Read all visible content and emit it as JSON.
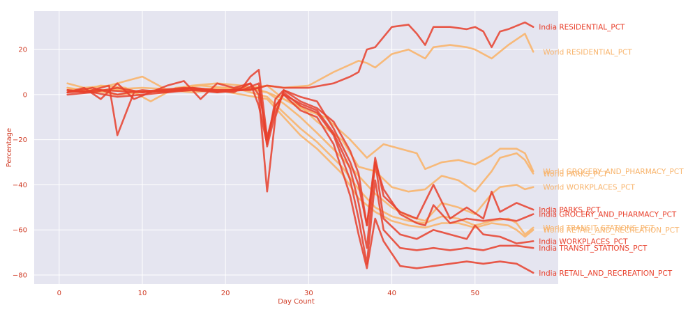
{
  "chart_data": {
    "type": "line",
    "xlabel": "Day Count",
    "ylabel": "Percentage",
    "xlim": [
      -3,
      60
    ],
    "ylim": [
      -84,
      37
    ],
    "x_ticks": [
      0,
      10,
      20,
      30,
      40,
      50
    ],
    "y_ticks": [
      20,
      0,
      -20,
      -40,
      -60,
      -80
    ],
    "x_tick_labels": [
      "0",
      "10",
      "20",
      "30",
      "40",
      "50"
    ],
    "y_tick_labels": [
      "20",
      "0",
      "−20",
      "−40",
      "−60",
      "−80"
    ],
    "grid": true,
    "legend": "labels at line ends (right)",
    "colors": {
      "plot_background": "#e5e5f0",
      "grid": "#ffffff",
      "axis_text": "#d03b25",
      "india": "#e8402c",
      "world": "#f8b46c"
    },
    "series": [
      {
        "name": "World RESIDENTIAL_PCT",
        "group": "world",
        "x": [
          1,
          5,
          10,
          15,
          20,
          23,
          25,
          27,
          30,
          33,
          36,
          37,
          38,
          40,
          42,
          44,
          45,
          47,
          49,
          50,
          52,
          54,
          56,
          57
        ],
        "y": [
          2,
          2,
          3,
          2,
          3,
          3,
          4,
          3,
          4,
          10,
          15,
          14,
          12,
          18,
          20,
          16,
          21,
          22,
          21,
          20,
          16,
          22,
          27,
          19
        ]
      },
      {
        "name": "World GROCERY_AND_PHARMACY_PCT",
        "group": "world",
        "x": [
          1,
          3,
          5,
          8,
          11,
          14,
          17,
          20,
          23,
          25,
          27,
          29,
          32,
          35,
          37,
          39,
          41,
          43,
          44,
          46,
          48,
          50,
          52,
          53,
          55,
          56,
          57
        ],
        "y": [
          3,
          2,
          4,
          3,
          -3,
          3,
          4,
          3,
          2,
          4,
          -2,
          -6,
          -10,
          -20,
          -28,
          -22,
          -24,
          -26,
          -33,
          -30,
          -29,
          -31,
          -27,
          -24,
          -24,
          -26,
          -34
        ]
      },
      {
        "name": "World PARKS_PCT",
        "group": "world",
        "x": [
          1,
          3,
          6,
          10,
          13,
          16,
          19,
          22,
          25,
          27,
          29,
          31,
          34,
          36,
          38,
          40,
          42,
          44,
          46,
          48,
          50,
          52,
          53,
          55,
          56,
          57
        ],
        "y": [
          5,
          3,
          4,
          8,
          2,
          4,
          5,
          4,
          1,
          -2,
          -5,
          -12,
          -20,
          -32,
          -34,
          -41,
          -43,
          -42,
          -36,
          -38,
          -43,
          -34,
          -28,
          -26,
          -29,
          -35
        ]
      },
      {
        "name": "World WORKPLACES_PCT",
        "group": "world",
        "x": [
          1,
          4,
          7,
          10,
          13,
          16,
          19,
          22,
          25,
          27,
          29,
          31,
          34,
          36,
          38,
          40,
          42,
          44,
          46,
          48,
          50,
          52,
          53,
          55,
          56,
          57
        ],
        "y": [
          2,
          1,
          3,
          1,
          2,
          3,
          2,
          3,
          1,
          -4,
          -10,
          -17,
          -28,
          -36,
          -44,
          -50,
          -54,
          -56,
          -48,
          -50,
          -53,
          -44,
          -41,
          -40,
          -42,
          -41
        ]
      },
      {
        "name": "World TRANSIT_STATIONS_PCT",
        "group": "world",
        "x": [
          1,
          4,
          7,
          10,
          13,
          16,
          19,
          22,
          25,
          27,
          29,
          31,
          34,
          36,
          38,
          40,
          42,
          44,
          46,
          48,
          50,
          52,
          54,
          55,
          56,
          57
        ],
        "y": [
          3,
          1,
          2,
          1,
          2,
          3,
          1,
          2,
          -1,
          -8,
          -15,
          -21,
          -32,
          -42,
          -50,
          -54,
          -56,
          -57,
          -54,
          -55,
          -58,
          -56,
          -55,
          -57,
          -62,
          -59
        ]
      },
      {
        "name": "World RETAIL_AND_RECREATION_PCT",
        "group": "world",
        "x": [
          1,
          4,
          7,
          10,
          13,
          16,
          19,
          22,
          25,
          27,
          29,
          31,
          34,
          36,
          38,
          40,
          42,
          44,
          46,
          48,
          50,
          52,
          54,
          55,
          56,
          57
        ],
        "y": [
          1,
          2,
          0,
          1,
          2,
          1,
          2,
          0,
          -2,
          -10,
          -18,
          -24,
          -35,
          -46,
          -52,
          -56,
          -58,
          -59,
          -57,
          -57,
          -59,
          -57,
          -58,
          -60,
          -63,
          -60
        ]
      },
      {
        "name": "India RESIDENTIAL_PCT",
        "group": "india",
        "x": [
          1,
          5,
          10,
          15,
          20,
          23,
          25,
          27,
          30,
          33,
          35,
          36,
          37,
          38,
          40,
          42,
          43,
          44,
          45,
          47,
          49,
          50,
          51,
          52,
          53,
          54,
          56,
          57
        ],
        "y": [
          1,
          2,
          1,
          2,
          2,
          2,
          4,
          3,
          3,
          5,
          8,
          10,
          20,
          21,
          30,
          31,
          27,
          22,
          30,
          30,
          29,
          30,
          28,
          21,
          28,
          29,
          32,
          30
        ]
      },
      {
        "name": "India PARKS_PCT",
        "group": "india",
        "x": [
          1,
          3,
          5,
          7,
          9,
          11,
          13,
          15,
          17,
          19,
          21,
          23,
          24,
          25,
          26,
          27,
          29,
          31,
          33,
          35,
          36,
          37,
          38,
          39,
          41,
          43,
          45,
          47,
          49,
          51,
          52,
          53,
          55,
          57
        ],
        "y": [
          1,
          3,
          -2,
          5,
          -2,
          1,
          4,
          6,
          -2,
          5,
          3,
          5,
          -5,
          -22,
          -2,
          2,
          -1,
          -3,
          -15,
          -30,
          -40,
          -58,
          -28,
          -45,
          -52,
          -55,
          -40,
          -55,
          -50,
          -55,
          -43,
          -52,
          -48,
          -51
        ]
      },
      {
        "name": "India GROCERY_AND_PHARMACY_PCT",
        "group": "india",
        "x": [
          1,
          3,
          6,
          7,
          9,
          12,
          15,
          18,
          21,
          23,
          24,
          25,
          26,
          27,
          29,
          31,
          33,
          35,
          36,
          37,
          38,
          39,
          41,
          43,
          44,
          45,
          47,
          49,
          51,
          53,
          55,
          57
        ],
        "y": [
          2,
          1,
          4,
          -18,
          1,
          2,
          3,
          2,
          1,
          5,
          0,
          -43,
          -10,
          2,
          -3,
          -6,
          -12,
          -25,
          -35,
          -58,
          -30,
          -42,
          -53,
          -57,
          -58,
          -49,
          -57,
          -55,
          -56,
          -55,
          -56,
          -53
        ]
      },
      {
        "name": "India WORKPLACES_PCT",
        "group": "india",
        "x": [
          1,
          4,
          7,
          10,
          13,
          16,
          19,
          22,
          23,
          24,
          25,
          26,
          27,
          29,
          31,
          33,
          35,
          36,
          37,
          38,
          39,
          41,
          43,
          45,
          47,
          49,
          50,
          51,
          53,
          55,
          57
        ],
        "y": [
          2,
          1,
          3,
          1,
          2,
          3,
          1,
          3,
          8,
          11,
          -19,
          -5,
          0,
          -4,
          -7,
          -17,
          -33,
          -48,
          -68,
          -30,
          -55,
          -62,
          -64,
          -60,
          -62,
          -64,
          -58,
          -62,
          -63,
          -66,
          -65
        ]
      },
      {
        "name": "India TRANSIT_STATIONS_PCT",
        "group": "india",
        "x": [
          1,
          4,
          7,
          10,
          13,
          16,
          19,
          22,
          24,
          25,
          26,
          27,
          29,
          31,
          33,
          35,
          36,
          37,
          38,
          39,
          41,
          43,
          45,
          47,
          49,
          51,
          53,
          55,
          57
        ],
        "y": [
          1,
          3,
          0,
          2,
          1,
          3,
          2,
          2,
          5,
          -23,
          -8,
          1,
          -5,
          -8,
          -18,
          -38,
          -55,
          -75,
          -38,
          -60,
          -68,
          -69,
          -68,
          -69,
          -68,
          -69,
          -67,
          -67,
          -68
        ]
      },
      {
        "name": "India RETAIL_AND_RECREATION_PCT",
        "group": "india",
        "x": [
          1,
          4,
          7,
          10,
          13,
          16,
          19,
          22,
          24,
          25,
          26,
          27,
          29,
          31,
          33,
          35,
          36,
          37,
          38,
          39,
          41,
          43,
          45,
          47,
          49,
          51,
          53,
          55,
          57
        ],
        "y": [
          0,
          1,
          -1,
          0,
          1,
          2,
          1,
          2,
          3,
          -20,
          -5,
          0,
          -7,
          -10,
          -22,
          -45,
          -62,
          -77,
          -55,
          -65,
          -76,
          -77,
          -76,
          -75,
          -74,
          -75,
          -74,
          -75,
          -79
        ]
      }
    ]
  }
}
